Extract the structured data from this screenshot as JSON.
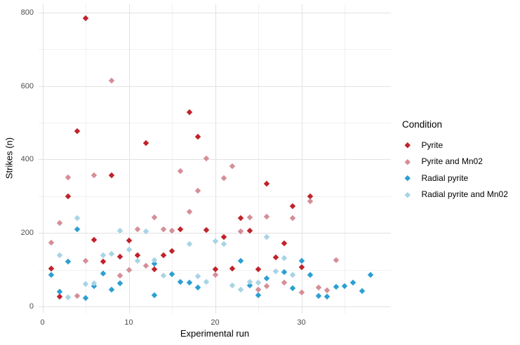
{
  "chart_data": {
    "type": "scatter",
    "title": "",
    "xlabel": "Experimental run",
    "ylabel": "Strikes (n)",
    "xlim": [
      -0.5,
      40
    ],
    "ylim": [
      0,
      820
    ],
    "x_ticks": [
      0,
      10,
      20,
      30
    ],
    "x_minor_ticks": [
      5,
      15,
      25,
      35
    ],
    "y_ticks": [
      0,
      200,
      400,
      600,
      800
    ],
    "y_minor_ticks": [
      100,
      300,
      500,
      700
    ],
    "grid": true,
    "legend": {
      "title": "Condition",
      "position": "right"
    },
    "marker": "diamond",
    "series": [
      {
        "name": "Pyrite",
        "color": "#c1222b",
        "points": [
          [
            1,
            103
          ],
          [
            2,
            27
          ],
          [
            3,
            300
          ],
          [
            4,
            477
          ],
          [
            5,
            784
          ],
          [
            6,
            181
          ],
          [
            7,
            122
          ],
          [
            8,
            357
          ],
          [
            9,
            135
          ],
          [
            10,
            180
          ],
          [
            11,
            139
          ],
          [
            12,
            445
          ],
          [
            13,
            101
          ],
          [
            14,
            139
          ],
          [
            15,
            151
          ],
          [
            16,
            210
          ],
          [
            17,
            529
          ],
          [
            18,
            462
          ],
          [
            19,
            208
          ],
          [
            20,
            101
          ],
          [
            21,
            189
          ],
          [
            22,
            104
          ],
          [
            23,
            240
          ],
          [
            24,
            206
          ],
          [
            25,
            102
          ],
          [
            26,
            334
          ],
          [
            27,
            134
          ],
          [
            28,
            172
          ],
          [
            29,
            273
          ],
          [
            30,
            106
          ],
          [
            31,
            300
          ]
        ]
      },
      {
        "name": "Pyrite and Mn02",
        "color": "#d58e97",
        "points": [
          [
            1,
            174
          ],
          [
            2,
            227
          ],
          [
            3,
            351
          ],
          [
            4,
            28
          ],
          [
            5,
            124
          ],
          [
            6,
            357
          ],
          [
            8,
            614
          ],
          [
            9,
            84
          ],
          [
            10,
            99
          ],
          [
            11,
            209
          ],
          [
            12,
            111
          ],
          [
            13,
            242
          ],
          [
            14,
            210
          ],
          [
            15,
            206
          ],
          [
            16,
            368
          ],
          [
            17,
            258
          ],
          [
            18,
            315
          ],
          [
            19,
            403
          ],
          [
            20,
            85
          ],
          [
            21,
            349
          ],
          [
            22,
            382
          ],
          [
            23,
            204
          ],
          [
            24,
            242
          ],
          [
            25,
            46
          ],
          [
            26,
            244
          ],
          [
            26,
            55
          ],
          [
            28,
            64
          ],
          [
            29,
            240
          ],
          [
            30,
            39
          ],
          [
            31,
            286
          ],
          [
            32,
            51
          ],
          [
            33,
            43
          ],
          [
            34,
            126
          ]
        ]
      },
      {
        "name": "Radial pyrite",
        "color": "#2b9fd3",
        "points": [
          [
            1,
            86
          ],
          [
            2,
            41
          ],
          [
            3,
            122
          ],
          [
            4,
            210
          ],
          [
            5,
            23
          ],
          [
            6,
            55
          ],
          [
            7,
            90
          ],
          [
            8,
            46
          ],
          [
            9,
            63
          ],
          [
            13,
            116
          ],
          [
            13,
            31
          ],
          [
            15,
            88
          ],
          [
            16,
            67
          ],
          [
            17,
            65
          ],
          [
            18,
            52
          ],
          [
            23,
            125
          ],
          [
            24,
            58
          ],
          [
            25,
            31
          ],
          [
            26,
            76
          ],
          [
            28,
            93
          ],
          [
            29,
            50
          ],
          [
            30,
            124
          ],
          [
            31,
            86
          ],
          [
            32,
            29
          ],
          [
            33,
            27
          ],
          [
            34,
            53
          ],
          [
            35,
            55
          ],
          [
            36,
            64
          ],
          [
            37,
            42
          ],
          [
            38,
            85
          ]
        ]
      },
      {
        "name": "Radial pyrite and Mn02",
        "color": "#a8d4e4",
        "points": [
          [
            2,
            139
          ],
          [
            3,
            24
          ],
          [
            4,
            240
          ],
          [
            5,
            61
          ],
          [
            6,
            63
          ],
          [
            7,
            139
          ],
          [
            8,
            143
          ],
          [
            9,
            206
          ],
          [
            10,
            155
          ],
          [
            11,
            125
          ],
          [
            12,
            204
          ],
          [
            13,
            126
          ],
          [
            14,
            84
          ],
          [
            17,
            170
          ],
          [
            18,
            82
          ],
          [
            19,
            67
          ],
          [
            20,
            177
          ],
          [
            21,
            170
          ],
          [
            22,
            57
          ],
          [
            23,
            46
          ],
          [
            24,
            67
          ],
          [
            25,
            65
          ],
          [
            26,
            189
          ],
          [
            27,
            96
          ],
          [
            28,
            132
          ],
          [
            29,
            85
          ]
        ]
      }
    ]
  }
}
